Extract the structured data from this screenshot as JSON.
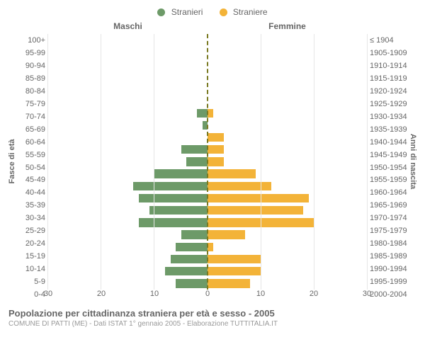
{
  "legend": {
    "male": {
      "label": "Stranieri",
      "color": "#6d9a68"
    },
    "female": {
      "label": "Straniere",
      "color": "#f3b338"
    }
  },
  "headers": {
    "left": "Maschi",
    "right": "Femmine"
  },
  "yaxis": {
    "left_title": "Fasce di età",
    "right_title": "Anni di nascita"
  },
  "xaxis": {
    "max": 30,
    "ticks": [
      0,
      10,
      20,
      30
    ]
  },
  "center_line_color": "#7a7a22",
  "grid_color": "#e6e6e6",
  "rows": [
    {
      "age": "100+",
      "birth": "≤ 1904",
      "m": 0,
      "f": 0
    },
    {
      "age": "95-99",
      "birth": "1905-1909",
      "m": 0,
      "f": 0
    },
    {
      "age": "90-94",
      "birth": "1910-1914",
      "m": 0,
      "f": 0
    },
    {
      "age": "85-89",
      "birth": "1915-1919",
      "m": 0,
      "f": 0
    },
    {
      "age": "80-84",
      "birth": "1920-1924",
      "m": 0,
      "f": 0
    },
    {
      "age": "75-79",
      "birth": "1925-1929",
      "m": 0,
      "f": 0
    },
    {
      "age": "70-74",
      "birth": "1930-1934",
      "m": 2,
      "f": 1
    },
    {
      "age": "65-69",
      "birth": "1935-1939",
      "m": 1,
      "f": 0
    },
    {
      "age": "60-64",
      "birth": "1940-1944",
      "m": 0,
      "f": 3
    },
    {
      "age": "55-59",
      "birth": "1945-1949",
      "m": 5,
      "f": 3
    },
    {
      "age": "50-54",
      "birth": "1950-1954",
      "m": 4,
      "f": 3
    },
    {
      "age": "45-49",
      "birth": "1955-1959",
      "m": 10,
      "f": 9
    },
    {
      "age": "40-44",
      "birth": "1960-1964",
      "m": 14,
      "f": 12
    },
    {
      "age": "35-39",
      "birth": "1965-1969",
      "m": 13,
      "f": 19
    },
    {
      "age": "30-34",
      "birth": "1970-1974",
      "m": 11,
      "f": 18
    },
    {
      "age": "25-29",
      "birth": "1975-1979",
      "m": 13,
      "f": 20
    },
    {
      "age": "20-24",
      "birth": "1980-1984",
      "m": 5,
      "f": 7
    },
    {
      "age": "15-19",
      "birth": "1985-1989",
      "m": 6,
      "f": 1
    },
    {
      "age": "10-14",
      "birth": "1990-1994",
      "m": 7,
      "f": 10
    },
    {
      "age": "5-9",
      "birth": "1995-1999",
      "m": 8,
      "f": 10
    },
    {
      "age": "0-4",
      "birth": "2000-2004",
      "m": 6,
      "f": 8
    }
  ],
  "footer": {
    "title": "Popolazione per cittadinanza straniera per età e sesso - 2005",
    "subtitle": "COMUNE DI PATTI (ME) - Dati ISTAT 1° gennaio 2005 - Elaborazione TUTTITALIA.IT"
  }
}
